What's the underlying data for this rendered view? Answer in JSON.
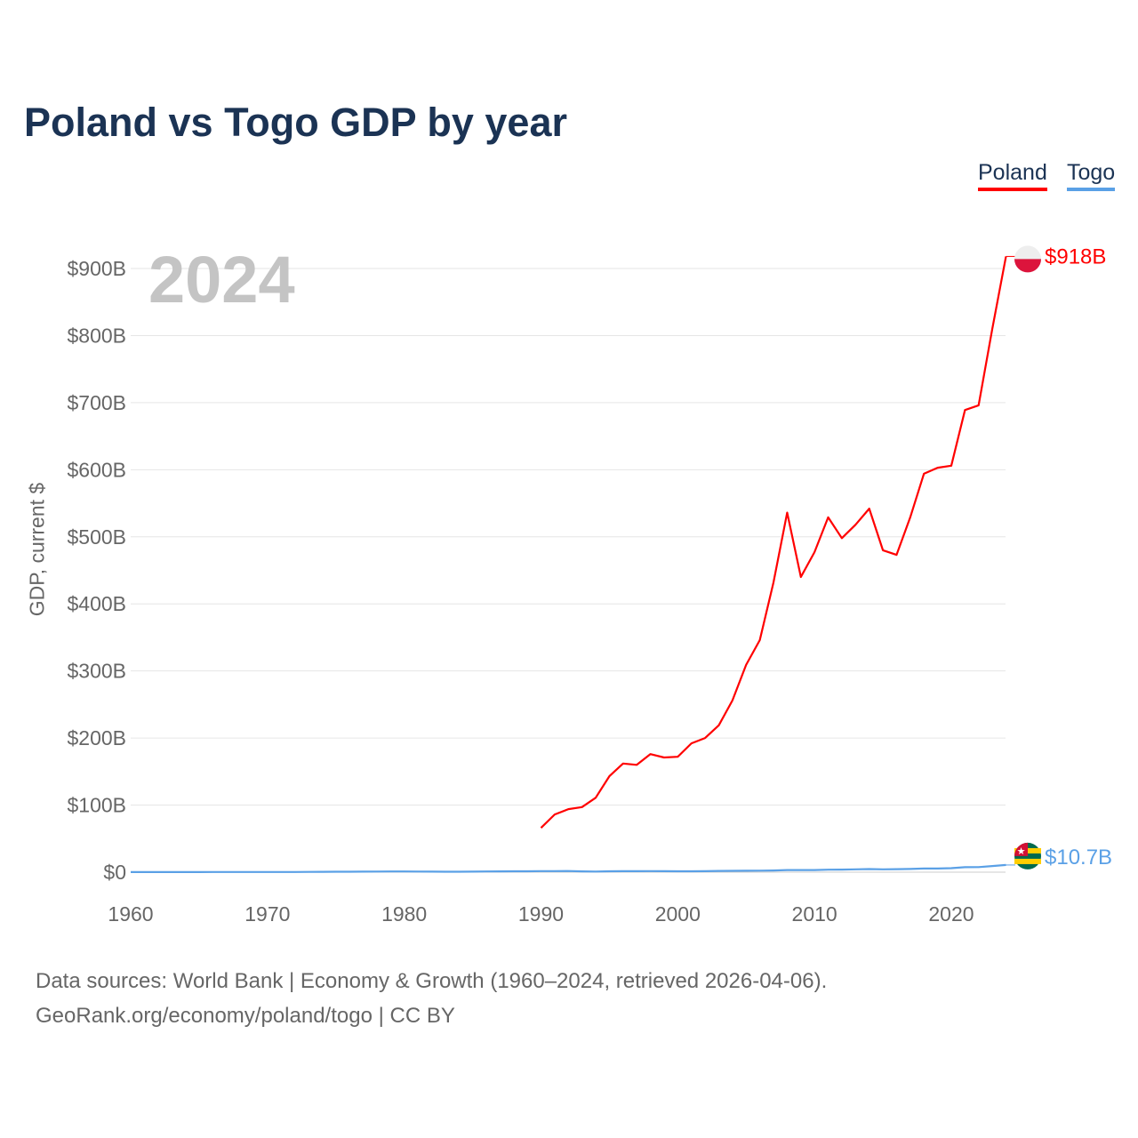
{
  "chart_data": {
    "type": "line",
    "title": "Poland vs Togo GDP by year",
    "ylabel": "GDP, current $",
    "xlabel": "",
    "xlim": [
      1960,
      2024
    ],
    "ylim": [
      0,
      900
    ],
    "y_unit": "billion USD",
    "x_ticks": [
      "1960",
      "1970",
      "1980",
      "1990",
      "2000",
      "2010",
      "2020"
    ],
    "y_ticks": [
      "$0",
      "$100B",
      "$200B",
      "$300B",
      "$400B",
      "$500B",
      "$600B",
      "$700B",
      "$800B",
      "$900B"
    ],
    "current_year": "2024",
    "legend_position": "top-right",
    "grid": true,
    "series": [
      {
        "name": "Poland",
        "color": "#ff0000",
        "end_label": "$918B",
        "start_year": 1990,
        "values": [
          66,
          86,
          94,
          97,
          111,
          143,
          162,
          160,
          176,
          171,
          172,
          192,
          200,
          219,
          256,
          309,
          346,
          432,
          536,
          440,
          477,
          529,
          498,
          518,
          542,
          480,
          473,
          529,
          594,
          603,
          606,
          689,
          696,
          810,
          918
        ]
      },
      {
        "name": "Togo",
        "color": "#5aa0e6",
        "end_label": "$10.7B",
        "start_year": 1960,
        "values": [
          0.12,
          0.13,
          0.13,
          0.14,
          0.16,
          0.19,
          0.21,
          0.23,
          0.24,
          0.27,
          0.25,
          0.29,
          0.33,
          0.4,
          0.59,
          0.62,
          0.66,
          0.79,
          0.98,
          1.1,
          1.1,
          0.98,
          0.82,
          0.72,
          0.71,
          0.75,
          1.0,
          1.2,
          1.3,
          1.3,
          1.6,
          1.6,
          1.7,
          1.2,
          0.98,
          1.3,
          1.5,
          1.5,
          1.6,
          1.5,
          1.3,
          1.3,
          1.5,
          1.8,
          2.0,
          2.1,
          2.2,
          2.5,
          3.2,
          3.2,
          3.2,
          3.7,
          3.9,
          4.3,
          4.6,
          4.2,
          4.5,
          4.8,
          5.4,
          5.5,
          5.9,
          7.4,
          7.6,
          9.2,
          10.7
        ]
      }
    ]
  },
  "source_line1": "Data sources: World Bank | Economy & Growth (1960–2024, retrieved 2026-04-06).",
  "source_line2": "GeoRank.org/economy/poland/togo | CC BY"
}
